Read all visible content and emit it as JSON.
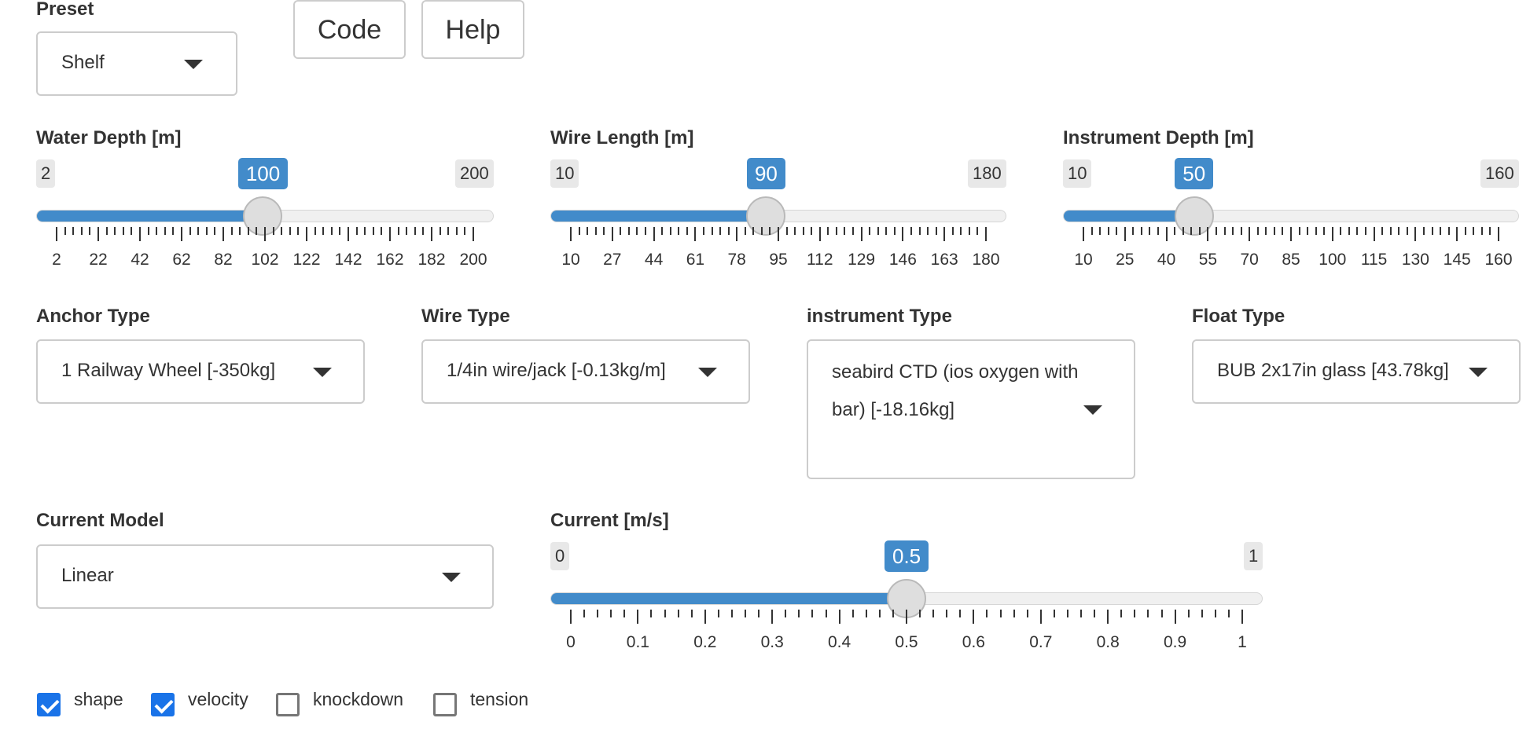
{
  "preset": {
    "label": "Preset",
    "value": "Shelf"
  },
  "buttons": {
    "code": "Code",
    "help": "Help"
  },
  "sliders": [
    {
      "id": "water-depth",
      "label": "Water Depth [m]",
      "min": 2,
      "max": 200,
      "value": 100,
      "min_text": "2",
      "max_text": "200",
      "value_text": "100",
      "ticks": [
        "2",
        "22",
        "42",
        "62",
        "82",
        "102",
        "122",
        "142",
        "162",
        "182",
        "200"
      ]
    },
    {
      "id": "wire-length",
      "label": "Wire Length [m]",
      "min": 10,
      "max": 180,
      "value": 90,
      "min_text": "10",
      "max_text": "180",
      "value_text": "90",
      "ticks": [
        "10",
        "27",
        "44",
        "61",
        "78",
        "95",
        "112",
        "129",
        "146",
        "163",
        "180"
      ]
    },
    {
      "id": "instrument-depth",
      "label": "Instrument Depth [m]",
      "min": 10,
      "max": 160,
      "value": 50,
      "min_text": "10",
      "max_text": "160",
      "value_text": "50",
      "ticks": [
        "10",
        "25",
        "40",
        "55",
        "70",
        "85",
        "100",
        "115",
        "130",
        "145",
        "160"
      ]
    },
    {
      "id": "current",
      "label": "Current [m/s]",
      "min": 0,
      "max": 1,
      "value": 0.5,
      "min_text": "0",
      "max_text": "1",
      "value_text": "0.5",
      "ticks": [
        "0",
        "0.1",
        "0.2",
        "0.3",
        "0.4",
        "0.5",
        "0.6",
        "0.7",
        "0.8",
        "0.9",
        "1"
      ]
    }
  ],
  "selects": {
    "anchor": {
      "label": "Anchor Type",
      "value": "1 Railway Wheel [-350kg]"
    },
    "wire": {
      "label": "Wire Type",
      "value": "1/4in wire/jack [-0.13kg/m]"
    },
    "instrument": {
      "label": "instrument Type",
      "value_line1": "seabird CTD (ios oxygen with",
      "value_line2": "bar) [-18.16kg]"
    },
    "float": {
      "label": "Float Type",
      "value": "BUB 2x17in glass [43.78kg]"
    },
    "current_model": {
      "label": "Current Model",
      "value": "Linear"
    }
  },
  "checkboxes": [
    {
      "label": "shape",
      "checked": true
    },
    {
      "label": "velocity",
      "checked": true
    },
    {
      "label": "knockdown",
      "checked": false
    },
    {
      "label": "tension",
      "checked": false
    }
  ]
}
